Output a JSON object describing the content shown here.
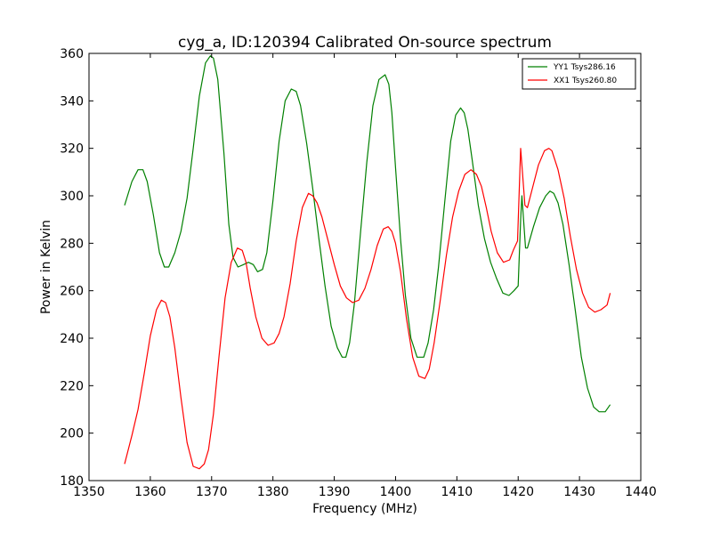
{
  "chart_data": {
    "type": "line",
    "title": "cyg_a, ID:120394 Calibrated On-source spectrum",
    "xlabel": "Frequency (MHz)",
    "ylabel": "Power in Kelvin",
    "xlim": [
      1350,
      1440
    ],
    "ylim": [
      180,
      360
    ],
    "xticks": [
      1350,
      1360,
      1370,
      1380,
      1390,
      1400,
      1410,
      1420,
      1430,
      1440
    ],
    "yticks": [
      180,
      200,
      220,
      240,
      260,
      280,
      300,
      320,
      340,
      360
    ],
    "grid": false,
    "legend_position": "top-right",
    "series": [
      {
        "name": "YY1 Tsys286.16",
        "color": "#008000",
        "x": [
          1355.8,
          1357,
          1358,
          1358.8,
          1359.5,
          1360.5,
          1361.5,
          1362.3,
          1363,
          1364,
          1365,
          1366,
          1367,
          1368,
          1369,
          1369.8,
          1370.3,
          1371,
          1372,
          1372.8,
          1373.5,
          1374.3,
          1375.2,
          1376,
          1376.8,
          1377.5,
          1378.3,
          1379,
          1380,
          1381,
          1382,
          1383,
          1383.8,
          1384.5,
          1385.5,
          1386.5,
          1387.5,
          1388.5,
          1389.5,
          1390.5,
          1391.3,
          1391.9,
          1392.5,
          1393.3,
          1394.3,
          1395.3,
          1396.3,
          1397.3,
          1398.3,
          1398.9,
          1399.4,
          1400,
          1400.8,
          1401.6,
          1402.5,
          1403.5,
          1404.6,
          1405.3,
          1406.2,
          1407,
          1408,
          1409,
          1409.8,
          1410.6,
          1411.2,
          1411.8,
          1412.5,
          1413.5,
          1414.5,
          1415.5,
          1416.5,
          1417.5,
          1418.5,
          1419.3,
          1420,
          1420.4,
          1420.6,
          1421.2,
          1421.5,
          1422.5,
          1423.5,
          1424.5,
          1425.2,
          1425.8,
          1426.5,
          1427.3,
          1428.3,
          1429.3,
          1430.3,
          1431.3,
          1432.3,
          1433.2,
          1434.2,
          1435
        ],
        "y": [
          296,
          306,
          311,
          311,
          306,
          292,
          276,
          270,
          270,
          276,
          285,
          299,
          320,
          342,
          356,
          359,
          358,
          349,
          318,
          288,
          274,
          270,
          271,
          272,
          271,
          268,
          269,
          276,
          298,
          323,
          340,
          345,
          344,
          338,
          322,
          303,
          282,
          262,
          245,
          236,
          232,
          232,
          238,
          255,
          285,
          314,
          338,
          349,
          351,
          347,
          335,
          312,
          282,
          258,
          240,
          232,
          232,
          238,
          252,
          270,
          297,
          323,
          334,
          337,
          335,
          328,
          315,
          296,
          282,
          272,
          265,
          259,
          258,
          260,
          262,
          290,
          300,
          278,
          278,
          287,
          295,
          300,
          302,
          301,
          297,
          288,
          271,
          252,
          232,
          219,
          211,
          209,
          209,
          212
        ]
      },
      {
        "name": "XX1 Tsys260.80",
        "color": "#ff0000",
        "x": [
          1355.8,
          1357,
          1358,
          1359,
          1360,
          1361,
          1361.8,
          1362.5,
          1363.2,
          1364,
          1365,
          1366,
          1367,
          1368,
          1368.8,
          1369.5,
          1370.3,
          1371.2,
          1372.2,
          1373.2,
          1374.2,
          1375,
          1375.6,
          1376.3,
          1377.2,
          1378.2,
          1379.2,
          1380.2,
          1381,
          1381.8,
          1382.8,
          1383.8,
          1384.8,
          1385.8,
          1386.5,
          1387.2,
          1388,
          1389,
          1390,
          1391,
          1392,
          1393,
          1394,
          1395,
          1396,
          1397,
          1398,
          1398.8,
          1399.4,
          1400,
          1400.8,
          1401.8,
          1402.8,
          1403.8,
          1404.8,
          1405.5,
          1406.3,
          1407.3,
          1408.3,
          1409.3,
          1410.3,
          1411.3,
          1412.3,
          1413.2,
          1414,
          1414.8,
          1415.6,
          1416.6,
          1417.6,
          1418.6,
          1419.2,
          1419.9,
          1420.4,
          1420.6,
          1421.1,
          1421.5,
          1422.3,
          1423.3,
          1424.3,
          1425,
          1425.5,
          1426.5,
          1427.5,
          1428.5,
          1429.5,
          1430.5,
          1431.5,
          1432.5,
          1433.5,
          1434.5,
          1435
        ],
        "y": [
          187,
          199,
          210,
          225,
          241,
          252,
          256,
          255,
          249,
          236,
          215,
          196,
          186,
          185,
          187,
          193,
          208,
          232,
          257,
          272,
          278,
          277,
          272,
          261,
          249,
          240,
          237,
          238,
          242,
          249,
          263,
          281,
          295,
          301,
          300,
          297,
          291,
          281,
          271,
          262,
          257,
          255,
          256,
          261,
          269,
          279,
          286,
          287,
          285,
          280,
          268,
          248,
          232,
          224,
          223,
          227,
          238,
          256,
          275,
          291,
          302,
          309,
          311,
          309,
          304,
          295,
          285,
          276,
          272,
          273,
          277,
          281,
          320,
          313,
          296,
          295,
          303,
          313,
          319,
          320,
          319,
          311,
          299,
          283,
          269,
          259,
          253,
          251,
          252,
          254,
          259
        ]
      }
    ]
  }
}
